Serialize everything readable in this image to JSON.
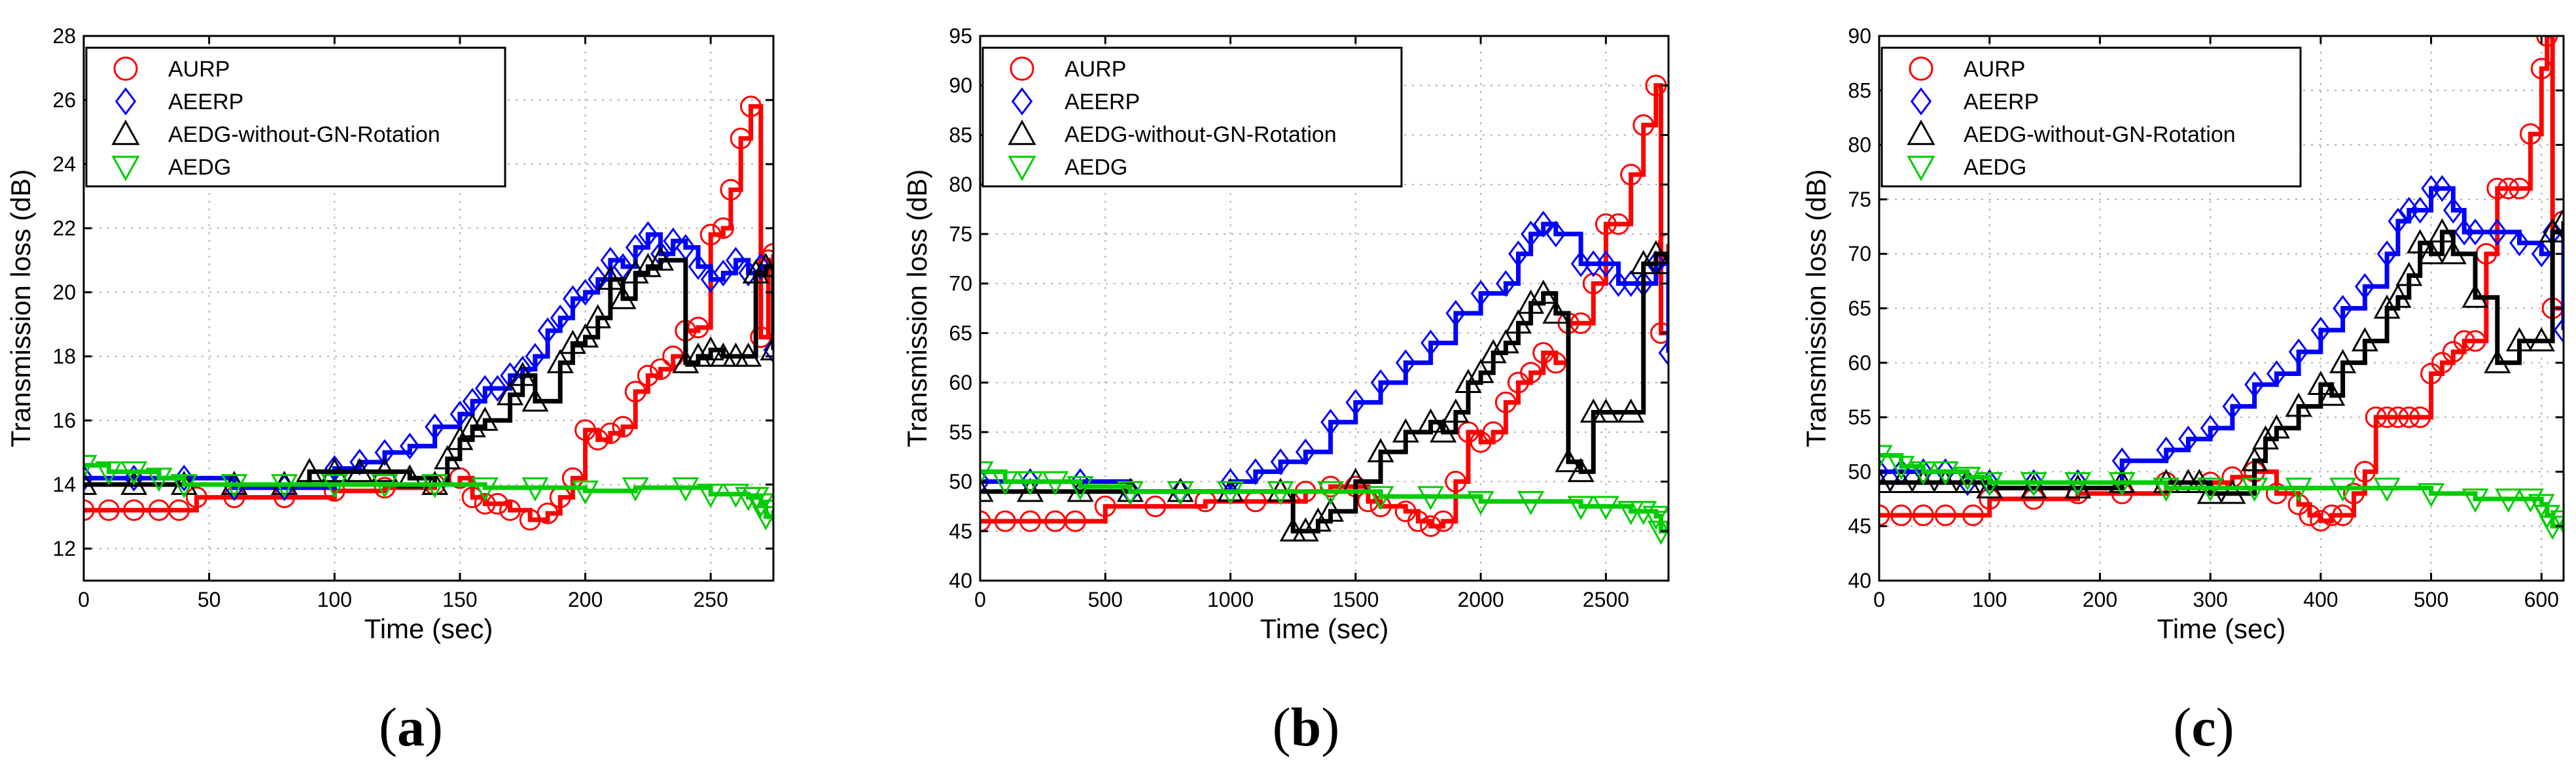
{
  "figure": {
    "captions": [
      "(a)",
      "(b)",
      "(c)"
    ]
  },
  "colors": {
    "AURP": "#ff0000",
    "AEERP": "#0000ff",
    "AEDG-without-GN-Rotation": "#000000",
    "AEDG": "#00cc00",
    "grid": "#b0b0b0"
  },
  "chart_data": [
    {
      "type": "line",
      "caption": "(a)",
      "xlabel": "Time (sec)",
      "ylabel": "Transmission loss (dB)",
      "xlim": [
        0,
        275
      ],
      "ylim": [
        11,
        28
      ],
      "xticks": [
        0,
        50,
        100,
        150,
        200,
        250
      ],
      "yticks": [
        12,
        14,
        16,
        18,
        20,
        22,
        24,
        26,
        28
      ],
      "grid": true,
      "legend": "top-left",
      "series": [
        {
          "name": "AURP",
          "marker": "circle",
          "x": [
            0,
            10,
            20,
            30,
            38,
            45,
            60,
            80,
            100,
            120,
            140,
            150,
            155,
            160,
            165,
            170,
            178,
            185,
            190,
            195,
            200,
            205,
            210,
            215,
            220,
            225,
            230,
            235,
            240,
            245,
            250,
            255,
            258,
            262,
            266,
            270,
            273,
            275
          ],
          "y": [
            13.2,
            13.2,
            13.2,
            13.2,
            13.2,
            13.6,
            13.6,
            13.6,
            13.8,
            13.9,
            14,
            14.2,
            13.6,
            13.4,
            13.4,
            13.2,
            12.9,
            13.1,
            13.6,
            14.2,
            15.7,
            15.4,
            15.6,
            15.8,
            16.9,
            17.4,
            17.6,
            18.0,
            18.8,
            18.9,
            21.8,
            22.0,
            23.2,
            24.8,
            25.8,
            18.6,
            21.0,
            21.2
          ]
        },
        {
          "name": "AEERP",
          "marker": "diamond",
          "x": [
            0,
            20,
            40,
            60,
            80,
            100,
            110,
            120,
            130,
            140,
            150,
            155,
            160,
            165,
            170,
            175,
            180,
            185,
            190,
            195,
            200,
            205,
            210,
            215,
            220,
            225,
            230,
            235,
            240,
            245,
            250,
            255,
            260,
            265,
            270,
            275
          ],
          "y": [
            14.2,
            14.2,
            14.2,
            13.9,
            13.9,
            14.5,
            14.7,
            15.0,
            15.2,
            15.8,
            16.2,
            16.6,
            17.0,
            17.0,
            17.4,
            17.6,
            18.0,
            18.8,
            19.2,
            19.8,
            20.0,
            20.4,
            21.0,
            20.8,
            21.4,
            21.8,
            21.2,
            21.6,
            21.4,
            20.8,
            20.4,
            20.6,
            21.0,
            20.6,
            20.8,
            18.2
          ]
        },
        {
          "name": "AEDG-without-GN-Rotation",
          "marker": "triangle-up",
          "x": [
            0,
            20,
            40,
            60,
            80,
            90,
            100,
            110,
            120,
            130,
            140,
            145,
            150,
            155,
            160,
            170,
            175,
            180,
            190,
            195,
            200,
            205,
            210,
            215,
            220,
            225,
            230,
            240,
            245,
            250,
            255,
            260,
            265,
            268,
            272,
            275
          ],
          "y": [
            14.0,
            14.0,
            14.0,
            14.0,
            14.0,
            14.4,
            14.4,
            14.4,
            14.4,
            14.2,
            14.0,
            14.8,
            15.4,
            15.8,
            16.0,
            16.8,
            17.4,
            16.6,
            17.8,
            18.4,
            18.6,
            19.2,
            20.4,
            19.8,
            20.6,
            20.8,
            21.0,
            17.8,
            18.0,
            18.2,
            18.0,
            18.0,
            18.0,
            20.6,
            20.8,
            18.2
          ]
        },
        {
          "name": "AEDG",
          "marker": "triangle-down",
          "x": [
            0,
            10,
            20,
            30,
            40,
            60,
            80,
            100,
            120,
            140,
            160,
            180,
            200,
            220,
            240,
            250,
            260,
            265,
            268,
            270,
            272,
            275
          ],
          "y": [
            14.6,
            14.4,
            14.4,
            14.2,
            14.0,
            14.0,
            14.0,
            14.0,
            14.0,
            14.0,
            13.9,
            13.9,
            13.8,
            13.9,
            13.9,
            13.7,
            13.7,
            13.6,
            13.6,
            13.4,
            13.0,
            13.2
          ]
        }
      ]
    },
    {
      "type": "line",
      "caption": "(b)",
      "xlabel": "Time (sec)",
      "ylabel": "Transmission loss (dB)",
      "xlim": [
        0,
        2750
      ],
      "ylim": [
        40,
        95
      ],
      "xticks": [
        0,
        500,
        1000,
        1500,
        2000,
        2500
      ],
      "yticks": [
        40,
        45,
        50,
        55,
        60,
        65,
        70,
        75,
        80,
        85,
        90,
        95
      ],
      "grid": true,
      "legend": "top-left",
      "series": [
        {
          "name": "AURP",
          "marker": "circle",
          "x": [
            0,
            100,
            200,
            300,
            380,
            500,
            700,
            900,
            1100,
            1300,
            1400,
            1500,
            1550,
            1600,
            1700,
            1750,
            1800,
            1850,
            1900,
            1950,
            2000,
            2050,
            2100,
            2150,
            2200,
            2250,
            2300,
            2350,
            2400,
            2450,
            2500,
            2550,
            2600,
            2650,
            2700,
            2720,
            2750
          ],
          "y": [
            46,
            46,
            46,
            46,
            46,
            47.5,
            47.5,
            48,
            48,
            49,
            49.5,
            49.5,
            48,
            47.5,
            47,
            46,
            45.5,
            46,
            50,
            55,
            54,
            55,
            58,
            60,
            61,
            63,
            62,
            66,
            66,
            70,
            76,
            76,
            81,
            86,
            90,
            65,
            74
          ]
        },
        {
          "name": "AEERP",
          "marker": "diamond",
          "x": [
            0,
            200,
            400,
            600,
            800,
            1000,
            1100,
            1200,
            1300,
            1400,
            1500,
            1600,
            1700,
            1800,
            1900,
            2000,
            2100,
            2150,
            2200,
            2250,
            2300,
            2400,
            2450,
            2500,
            2550,
            2600,
            2650,
            2700,
            2750
          ],
          "y": [
            50,
            50,
            50,
            49,
            49,
            50,
            51,
            52,
            53,
            56,
            58,
            60,
            62,
            64,
            67,
            69,
            70,
            73,
            75,
            76,
            75,
            72,
            72,
            72,
            70,
            70,
            70,
            72,
            63
          ]
        },
        {
          "name": "AEDG-without-GN-Rotation",
          "marker": "triangle-up",
          "x": [
            0,
            200,
            400,
            600,
            800,
            1000,
            1200,
            1250,
            1300,
            1350,
            1400,
            1500,
            1600,
            1700,
            1800,
            1850,
            1900,
            1950,
            2000,
            2050,
            2100,
            2150,
            2200,
            2250,
            2300,
            2350,
            2400,
            2450,
            2500,
            2600,
            2650,
            2700,
            2750
          ],
          "y": [
            49,
            49,
            49,
            49,
            49,
            49,
            49,
            45,
            45,
            46,
            47,
            50,
            53,
            55,
            56,
            55,
            57,
            60,
            61,
            63,
            64,
            66,
            68,
            69,
            67,
            52,
            51,
            57,
            57,
            57,
            72,
            73,
            72
          ]
        },
        {
          "name": "AEDG",
          "marker": "triangle-down",
          "x": [
            0,
            100,
            200,
            300,
            400,
            600,
            800,
            1000,
            1200,
            1400,
            1600,
            1800,
            2000,
            2200,
            2400,
            2500,
            2600,
            2650,
            2700,
            2720,
            2750
          ],
          "y": [
            51,
            50,
            50,
            50,
            49.5,
            49,
            49,
            49,
            49,
            49,
            48.5,
            48.5,
            48,
            48,
            47.5,
            47.5,
            47,
            47,
            46.5,
            45,
            46
          ]
        }
      ]
    },
    {
      "type": "line",
      "caption": "(c)",
      "xlabel": "Time (sec)",
      "ylabel": "Transmission loss (dB)",
      "xlim": [
        0,
        620
      ],
      "ylim": [
        40,
        90
      ],
      "xticks": [
        0,
        100,
        200,
        300,
        400,
        500,
        600
      ],
      "yticks": [
        40,
        45,
        50,
        55,
        60,
        65,
        70,
        75,
        80,
        85,
        90
      ],
      "grid": true,
      "legend": "top-left",
      "series": [
        {
          "name": "AURP",
          "marker": "circle",
          "x": [
            0,
            20,
            40,
            60,
            85,
            100,
            140,
            180,
            220,
            260,
            300,
            320,
            340,
            360,
            380,
            390,
            400,
            410,
            420,
            430,
            440,
            450,
            460,
            470,
            480,
            490,
            500,
            510,
            520,
            530,
            540,
            550,
            560,
            570,
            580,
            590,
            600,
            605,
            610,
            620
          ],
          "y": [
            46,
            46,
            46,
            46,
            46,
            47.5,
            47.5,
            48,
            48,
            49,
            49,
            49.5,
            50,
            48,
            47,
            46,
            45.5,
            46,
            46,
            48,
            50,
            55,
            55,
            55,
            55,
            55,
            59,
            60,
            61,
            62,
            62,
            70,
            76,
            76,
            76,
            81,
            87,
            90,
            65,
            73
          ]
        },
        {
          "name": "AEERP",
          "marker": "diamond",
          "x": [
            0,
            20,
            40,
            60,
            80,
            100,
            140,
            180,
            220,
            260,
            280,
            300,
            320,
            340,
            360,
            380,
            400,
            420,
            440,
            460,
            470,
            480,
            490,
            500,
            510,
            520,
            530,
            540,
            560,
            580,
            600,
            610,
            620
          ],
          "y": [
            50,
            50,
            50,
            50,
            49,
            49,
            49,
            49,
            51,
            52,
            53,
            54,
            56,
            58,
            59,
            61,
            63,
            65,
            67,
            70,
            73,
            74,
            74,
            76,
            76,
            74,
            72,
            72,
            72,
            71,
            70,
            72,
            63
          ]
        },
        {
          "name": "AEDG-without-GN-Rotation",
          "marker": "triangle-up",
          "x": [
            0,
            20,
            40,
            60,
            80,
            100,
            140,
            180,
            220,
            260,
            280,
            290,
            300,
            320,
            340,
            350,
            360,
            380,
            400,
            410,
            420,
            440,
            460,
            470,
            480,
            490,
            500,
            510,
            520,
            540,
            560,
            580,
            600,
            610,
            620
          ],
          "y": [
            49,
            49,
            49,
            49,
            49,
            48.5,
            48.5,
            48.5,
            49,
            49,
            49,
            49,
            48,
            48,
            51,
            53,
            54,
            56,
            58,
            57,
            60,
            62,
            65,
            66,
            68,
            71,
            70,
            72,
            70,
            66,
            60,
            62,
            62,
            72,
            73
          ]
        },
        {
          "name": "AEDG",
          "marker": "triangle-down",
          "x": [
            0,
            20,
            40,
            60,
            80,
            100,
            140,
            180,
            220,
            260,
            300,
            340,
            380,
            420,
            460,
            500,
            540,
            570,
            590,
            600,
            605,
            610,
            620
          ],
          "y": [
            51.5,
            50.5,
            50,
            50,
            49.5,
            49,
            49,
            49,
            49,
            48.5,
            48.5,
            48.5,
            48.5,
            48.5,
            48.5,
            48,
            47.5,
            47.5,
            47.5,
            47,
            46,
            45,
            45.5
          ]
        }
      ]
    }
  ]
}
